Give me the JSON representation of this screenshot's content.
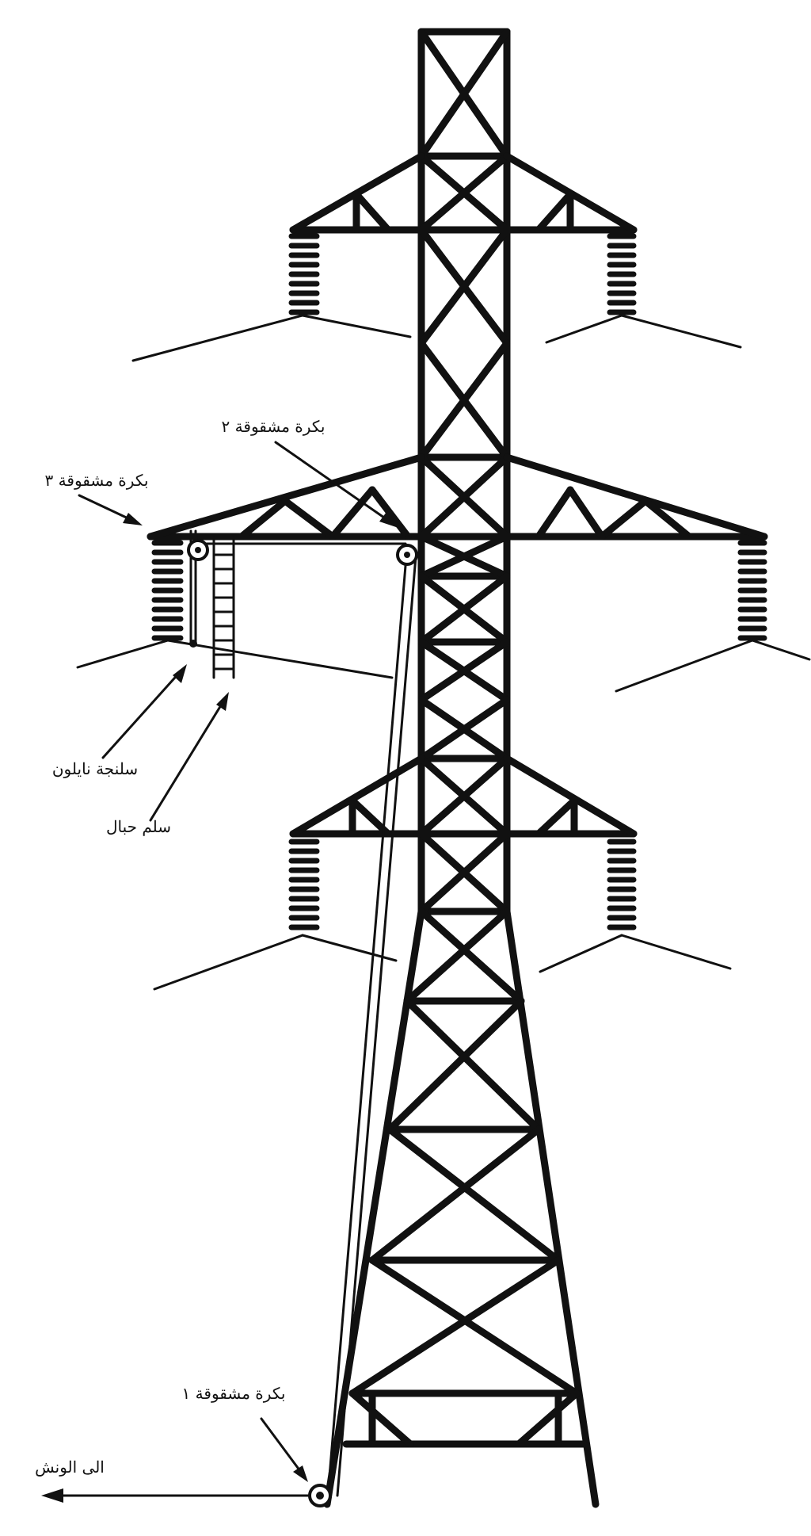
{
  "labels": {
    "pulley_1": "بكرة مشقوقة ١",
    "pulley_2": "بكرة مشقوقة ٢",
    "pulley_3": "بكرة مشقوقة ٣",
    "nylon_sling": "سلنجة نايلون",
    "rope_ladder": "سلم حبال",
    "to_winch": "الى الونش"
  }
}
